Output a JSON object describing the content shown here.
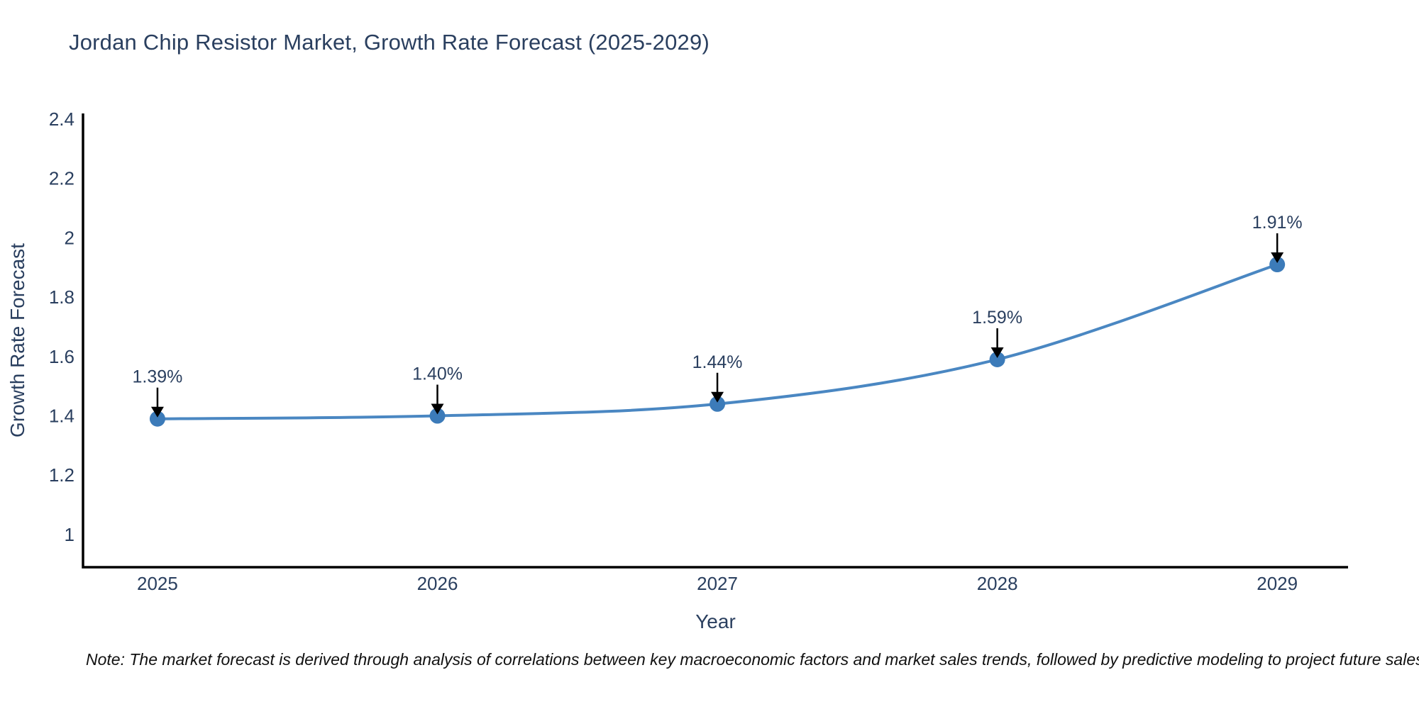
{
  "page": {
    "background": "#ffffff"
  },
  "chart_data": {
    "type": "line",
    "title": "Jordan Chip Resistor Market, Growth Rate Forecast (2025-2029)",
    "xlabel": "Year",
    "ylabel": "Growth Rate Forecast",
    "x": [
      2025,
      2026,
      2027,
      2028,
      2029
    ],
    "series": [
      {
        "name": "Growth Rate Forecast",
        "values": [
          1.39,
          1.4,
          1.44,
          1.59,
          1.91
        ],
        "point_labels": [
          "1.39%",
          "1.40%",
          "1.44%",
          "1.59%",
          "1.91%"
        ]
      }
    ],
    "xtick_labels": [
      "2025",
      "2026",
      "2027",
      "2028",
      "2029"
    ],
    "ytick_values": [
      2.4,
      2.2,
      2,
      1.8,
      1.6,
      1.4,
      1.2,
      1
    ],
    "ytick_labels": [
      "2.4",
      "2.2",
      "2",
      "1.8",
      "1.6",
      "1.4",
      "1.2",
      "1"
    ],
    "xlim": [
      2024.734,
      2029.253
    ],
    "ylim": [
      0.89,
      2.419
    ],
    "grid": false,
    "legend": "none",
    "line_shape": "spline",
    "annotation_arrows": true,
    "colors": {
      "line": "#4a87c2",
      "marker": "#3c7bb9",
      "axis_line": "#000000",
      "arrow": "#000000",
      "text": "#2a3f5f"
    }
  },
  "note": {
    "text": "Note: The market forecast is derived through analysis of correlations between key macroeconomic factors and market sales trends, followed by predictive modeling to project future sales"
  }
}
